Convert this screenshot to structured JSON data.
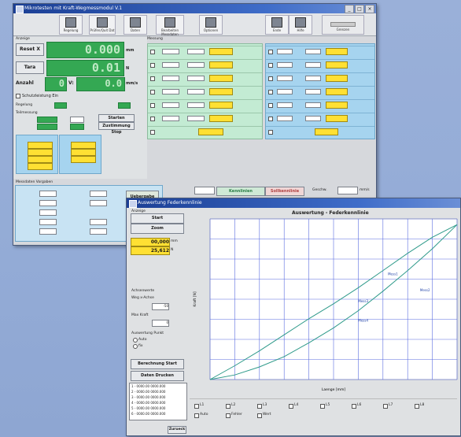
{
  "main_window": {
    "title": "Mikrotesten mit Kraft-Wegmessmodul V.1",
    "toolbar": [
      {
        "label": "Regelung"
      },
      {
        "label": "Prüfen/Quit Dat"
      },
      {
        "label": "Daten"
      },
      {
        "label": "Bearbeiten Messdaten"
      },
      {
        "label": "Optionen"
      },
      {
        "label": "Ende"
      },
      {
        "label": "Hilfe"
      },
      {
        "label": "Grenzen"
      }
    ],
    "section_label": "Anzeige",
    "reset_button": "Reset X",
    "tara_button": "Tara",
    "anzahl_label": "Anzahl",
    "value_x": "0.000",
    "value_x_unit": "mm",
    "value_f": "0.01",
    "value_f_unit": "N",
    "value_count": "0",
    "value_v_label": "V:",
    "value_v": "0.0",
    "value_v_unit": "mm/s",
    "schutz_label": "Schutzleistung Ein",
    "regelung_label": "Regelung",
    "start_button": "Starten",
    "stop_button": "Zustimmung Stop",
    "teil_label": "Teilmessung",
    "right_panel_label": "Messung",
    "bottom_label": "Messdaten Vorgaben",
    "bottom_button_1": "Uebergabe",
    "bottom_button_2": "Kennlinien",
    "bottom_button_3": "Sollkennlinie",
    "speed_label": "Geschw.",
    "speed_unit": "mm/s"
  },
  "chart_window": {
    "title": "Auswertung Federkennlinie",
    "sidebar": {
      "group_label": "Anzeige",
      "btn1": "Start",
      "btn2": "Zoom",
      "value1": "00,000",
      "value1_unit": "mm",
      "value2": "25,612",
      "value2_unit": "N",
      "section1": "Achsenwerte",
      "section2": "Weg x-Achse",
      "val_a": "-50",
      "label_b": "Max Kraft",
      "val_b": "0",
      "section3": "Auswertung Punkt",
      "radio1": "Auto",
      "radio2": "fix",
      "btn_calc": "Berechnung Start",
      "btn_print": "Daten Drucken",
      "list": [
        "1 - 0000.00 0000.000",
        "2 - 0000.00 0000.000",
        "3 - 0000.00 0000.000",
        "4 - 0000.00 0000.000",
        "5 - 0000.00 0000.000",
        "6 - 0000.00 0000.000"
      ]
    },
    "chart_title": "Auswertung - Federkennlinie",
    "bottom_checks": [
      "L1",
      "L2",
      "L3",
      "L4",
      "L5",
      "L6",
      "L7",
      "L8",
      "Auto",
      "Fehler",
      "Wert"
    ],
    "ok_button": "Zurueck"
  },
  "chart_data": {
    "type": "line",
    "title": "Auswertung - Federkennlinie",
    "xlabel": "Laenge [mm]",
    "ylabel": "Kraft [N]",
    "grid": true,
    "series": [
      {
        "x": [
          0,
          1,
          2,
          3,
          4,
          5,
          6,
          7,
          8,
          9,
          10
        ],
        "y": [
          0,
          1.2,
          2.5,
          3.9,
          5.3,
          6.6,
          8.0,
          9.5,
          11,
          12.4,
          13.5
        ]
      },
      {
        "x": [
          0,
          1,
          2,
          3,
          4,
          5,
          6,
          7,
          8,
          9,
          10
        ],
        "y": [
          0,
          0.4,
          1.1,
          2.0,
          3.2,
          4.5,
          6.0,
          7.7,
          9.5,
          11.4,
          13.5
        ]
      }
    ],
    "annotations": [
      "Mess1",
      "Mess2",
      "Mess3",
      "Mess4"
    ]
  }
}
